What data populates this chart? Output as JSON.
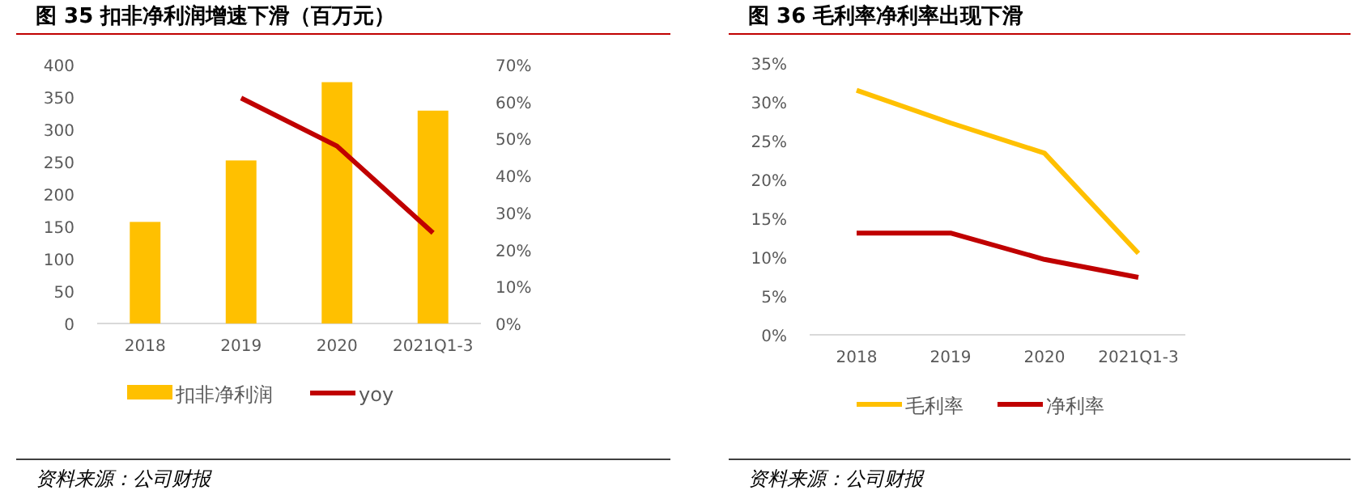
{
  "chart_data": [
    {
      "type": "bar",
      "title": "图  35  扣非净利润增速下滑（百万元）",
      "categories": [
        "2018",
        "2019",
        "2020",
        "2021Q1-3"
      ],
      "series": [
        {
          "name": "扣非净利润",
          "color": "#ffc000",
          "values": [
            157,
            252,
            373,
            329
          ]
        },
        {
          "name": "yoy",
          "type": "line",
          "axis": "y2",
          "color": "#c00000",
          "values": [
            null,
            61,
            48,
            24.5
          ]
        }
      ],
      "ylim": [
        0,
        400
      ],
      "yticks": [
        0,
        50,
        100,
        150,
        200,
        250,
        300,
        350,
        400
      ],
      "y2lim": [
        0,
        70
      ],
      "y2ticks": [
        {
          "value": 0,
          "label": "0%"
        },
        {
          "value": 10,
          "label": "10%"
        },
        {
          "value": 20,
          "label": "20%"
        },
        {
          "value": 30,
          "label": "30%"
        },
        {
          "value": 40,
          "label": "40%"
        },
        {
          "value": 50,
          "label": "50%"
        },
        {
          "value": 60,
          "label": "60%"
        },
        {
          "value": 70,
          "label": "70%"
        }
      ],
      "legend": "bottom",
      "annotations": [
        "资料来源：公司财报"
      ]
    },
    {
      "type": "line",
      "title": "图  36  毛利率净利率出现下滑",
      "categories": [
        "2018",
        "2019",
        "2020",
        "2021Q1-3"
      ],
      "series": [
        {
          "name": "毛利率",
          "color": "#ffc000",
          "values": [
            31.5,
            27.3,
            23.4,
            10.5
          ]
        },
        {
          "name": "净利率",
          "color": "#c00000",
          "values": [
            13.1,
            13.1,
            9.7,
            7.4
          ]
        }
      ],
      "ylim": [
        0,
        35
      ],
      "yticks": [
        {
          "value": 0,
          "label": "0%"
        },
        {
          "value": 5,
          "label": "5%"
        },
        {
          "value": 10,
          "label": "10%"
        },
        {
          "value": 15,
          "label": "15%"
        },
        {
          "value": 20,
          "label": "20%"
        },
        {
          "value": 25,
          "label": "25%"
        },
        {
          "value": 30,
          "label": "30%"
        },
        {
          "value": 35,
          "label": "35%"
        }
      ],
      "legend": "bottom",
      "annotations": [
        "资料来源：公司财报"
      ]
    }
  ]
}
